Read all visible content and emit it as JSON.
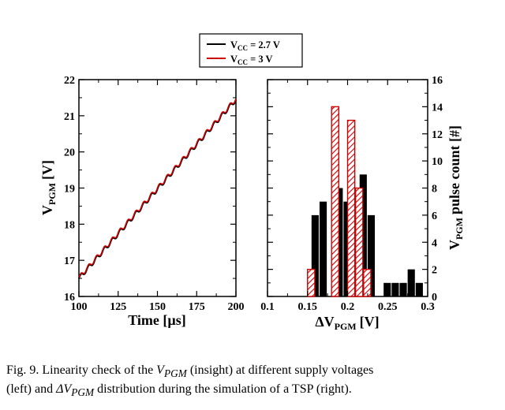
{
  "chart_data": [
    {
      "type": "line",
      "panel": "left",
      "xlabel": "Time [µs]",
      "ylabel": "V",
      "ylabel_sub": "PGM",
      "ylabel_unit": "[V]",
      "xlim": [
        100,
        200
      ],
      "ylim": [
        16,
        22
      ],
      "xticks": [
        "100",
        "125",
        "150",
        "175",
        "200"
      ],
      "yticks": [
        "16",
        "17",
        "18",
        "19",
        "20",
        "21",
        "22"
      ],
      "step_us": 5,
      "series": [
        {
          "name": "V",
          "name_sub": "CC",
          "name_rest": " = 2.7 V",
          "color": "#000000",
          "x": [
            100,
            200
          ],
          "y": [
            16.5,
            21.45
          ]
        },
        {
          "name": "V",
          "name_sub": "CC",
          "name_rest": " = 3 V",
          "color": "#cc0000",
          "x": [
            100,
            200
          ],
          "y": [
            16.5,
            21.45
          ]
        }
      ],
      "legend": "top-center"
    },
    {
      "type": "bar",
      "panel": "right",
      "xlabel": "ΔV",
      "xlabel_sub": "PGM",
      "xlabel_unit": "[V]",
      "ylabel": "V",
      "ylabel_sub": "PGM",
      "ylabel_unit": "pulse count [#]",
      "xlim": [
        0.1,
        0.3
      ],
      "ylim": [
        0,
        16
      ],
      "xticks": [
        "0.1",
        "0.15",
        "0.2",
        "0.25",
        "0.3"
      ],
      "yticks": [
        "0",
        "2",
        "4",
        "6",
        "8",
        "10",
        "12",
        "14",
        "16"
      ],
      "bar_width": 0.01,
      "series": [
        {
          "name": "V",
          "name_sub": "CC",
          "name_rest": " = 2.7 V",
          "color": "#000000",
          "pattern": "solid",
          "x": [
            0.16,
            0.17,
            0.18,
            0.19,
            0.2,
            0.21,
            0.22,
            0.23,
            0.24,
            0.25,
            0.26,
            0.27,
            0.28,
            0.29
          ],
          "values": [
            6,
            7,
            0,
            8,
            7,
            0,
            9,
            6,
            0,
            1,
            1,
            1,
            2,
            1
          ]
        },
        {
          "name": "V",
          "name_sub": "CC",
          "name_rest": " = 3 V",
          "color": "#cc0000",
          "pattern": "hatched",
          "x": [
            0.155,
            0.165,
            0.175,
            0.185,
            0.195,
            0.205,
            0.215,
            0.225
          ],
          "values": [
            2,
            0,
            0,
            14,
            0,
            13,
            8,
            2
          ]
        }
      ]
    }
  ],
  "caption": {
    "label": "Fig. 9.",
    "p1": "  Linearity check of the ",
    "v1": "V",
    "v1_sub": "PGM",
    "p2": " (insight) at different supply voltages",
    "line2_start": "(left) and ",
    "v2": "ΔV",
    "v2_sub": "PGM",
    "p3": " distribution during the simulation of a TSP (right)."
  }
}
